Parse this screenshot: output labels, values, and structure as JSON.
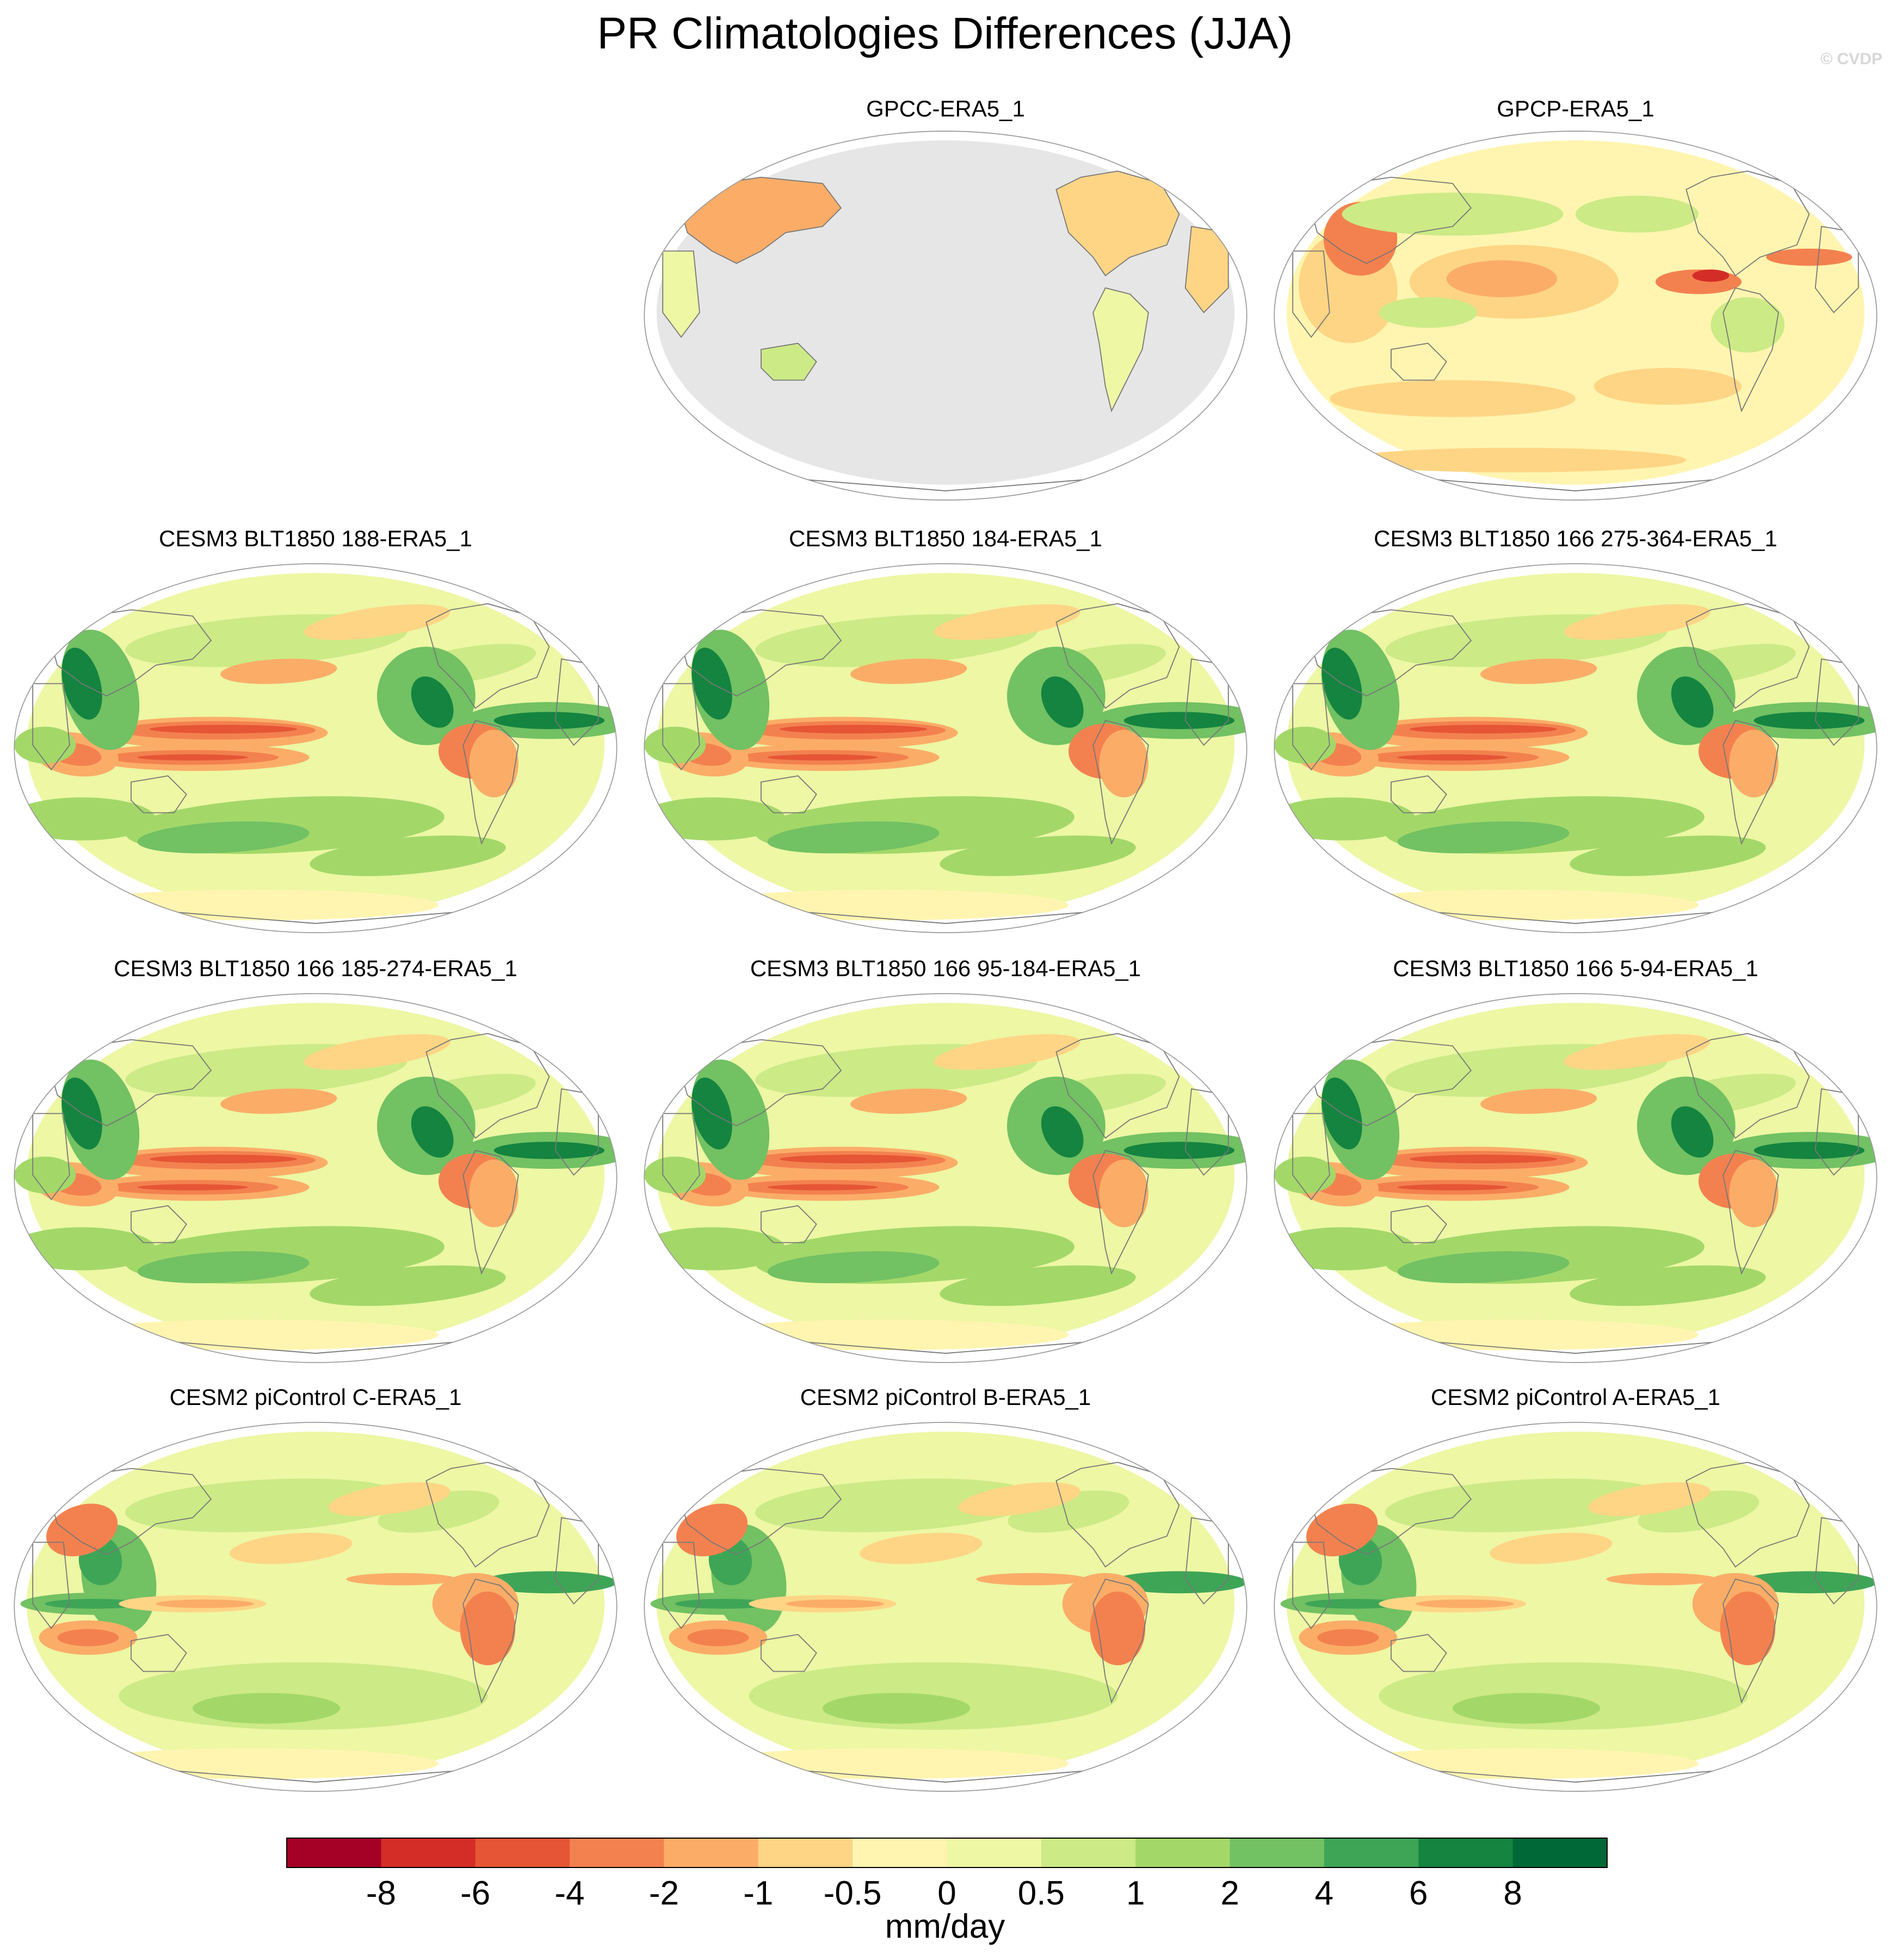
{
  "title": "PR Climatologies Differences (JJA)",
  "watermark": "© CVDP",
  "colors": {
    "land_mask": "#e6e6e6",
    "ocean_outline": "#999999",
    "coast": "#777777"
  },
  "panels": [
    {
      "title": "GPCC-ERA5_1",
      "style": "land_only"
    },
    {
      "title": "GPCP-ERA5_1",
      "style": "obs"
    },
    {
      "title": "CESM3 BLT1850 188-ERA5_1",
      "style": "cesm3"
    },
    {
      "title": "CESM3 BLT1850 184-ERA5_1",
      "style": "cesm3"
    },
    {
      "title": "CESM3 BLT1850 166 275-364-ERA5_1",
      "style": "cesm3"
    },
    {
      "title": "CESM3 BLT1850 166 185-274-ERA5_1",
      "style": "cesm3"
    },
    {
      "title": "CESM3 BLT1850 166 95-184-ERA5_1",
      "style": "cesm3"
    },
    {
      "title": "CESM3 BLT1850 166 5-94-ERA5_1",
      "style": "cesm3"
    },
    {
      "title": "CESM2 piControl C-ERA5_1",
      "style": "cesm2"
    },
    {
      "title": "CESM2 piControl B-ERA5_1",
      "style": "cesm2"
    },
    {
      "title": "CESM2 piControl A-ERA5_1",
      "style": "cesm2"
    }
  ],
  "colorbar": {
    "units": "mm/day",
    "labels": [
      "-8",
      "-6",
      "-4",
      "-2",
      "-1",
      "-0.5",
      "0",
      "0.5",
      "1",
      "2",
      "4",
      "6",
      "8"
    ],
    "colors": [
      "#a50026",
      "#d42d27",
      "#e65535",
      "#f3814f",
      "#fbad68",
      "#fed585",
      "#fff5b0",
      "#edf7a4",
      "#ccea86",
      "#a3d869",
      "#72c163",
      "#3ea557",
      "#148440",
      "#006837"
    ]
  }
}
